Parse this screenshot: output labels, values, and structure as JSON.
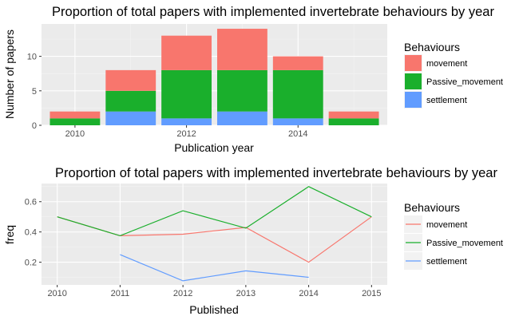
{
  "chart_data": [
    {
      "type": "bar",
      "stacked": true,
      "title": "Proportion of total papers with implemented invertebrate behaviours by year",
      "xlabel": "Publication year",
      "ylabel": "Number of papers",
      "x_ticks": [
        "2010",
        "2012",
        "2014"
      ],
      "y_ticks": [
        "0",
        "5",
        "10"
      ],
      "ylim": [
        0,
        14.7
      ],
      "grid": true,
      "legend": {
        "title": "Behaviours",
        "position": "right"
      },
      "categories": [
        2010,
        2011,
        2012,
        2013,
        2014,
        2015
      ],
      "series": [
        {
          "name": "movement",
          "color": "#F8766D",
          "values": [
            1,
            3,
            5,
            6,
            2,
            1
          ]
        },
        {
          "name": "Passive_movement",
          "color": "#1AAF2C",
          "values": [
            1,
            3,
            7,
            6,
            7,
            1
          ]
        },
        {
          "name": "settlement",
          "color": "#619CFF",
          "values": [
            0,
            2,
            1,
            2,
            1,
            0
          ]
        }
      ]
    },
    {
      "type": "line",
      "title": "Proportion of total papers with implemented invertebrate behaviours by year",
      "xlabel": "Published",
      "ylabel": "freq",
      "x_ticks": [
        "2010",
        "2011",
        "2012",
        "2013",
        "2014",
        "2015"
      ],
      "y_ticks": [
        "0.2",
        "0.4",
        "0.6"
      ],
      "ylim": [
        0.05,
        0.72
      ],
      "grid": true,
      "legend": {
        "title": "Behaviours",
        "position": "right"
      },
      "x": [
        2010,
        2011,
        2012,
        2013,
        2014,
        2015
      ],
      "series": [
        {
          "name": "movement",
          "color": "#F8766D",
          "values": [
            0.5,
            0.375,
            0.385,
            0.43,
            0.2,
            0.5
          ]
        },
        {
          "name": "Passive_movement",
          "color": "#1AAF2C",
          "values": [
            0.5,
            0.375,
            0.54,
            0.425,
            0.7,
            0.5
          ]
        },
        {
          "name": "settlement",
          "color": "#619CFF",
          "values": [
            null,
            0.25,
            0.077,
            0.143,
            0.1,
            null
          ]
        }
      ]
    }
  ]
}
